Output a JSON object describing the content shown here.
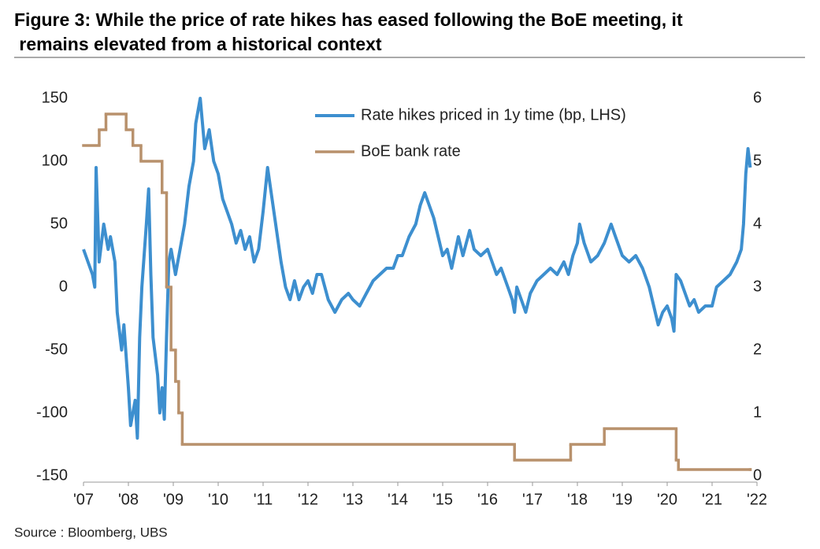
{
  "chart_data": {
    "type": "line",
    "title": "Figure 3: While the price of rate hikes has eased following the BoE meeting, it remains elevated from a historical context",
    "source": "Source : Bloomberg, UBS",
    "xlim": [
      2007,
      2022
    ],
    "xticks": [
      {
        "value": 2007,
        "label": "'07"
      },
      {
        "value": 2008,
        "label": "'08"
      },
      {
        "value": 2009,
        "label": "'09"
      },
      {
        "value": 2010,
        "label": "'10"
      },
      {
        "value": 2011,
        "label": "'11"
      },
      {
        "value": 2012,
        "label": "'12"
      },
      {
        "value": 2013,
        "label": "'13"
      },
      {
        "value": 2014,
        "label": "'14"
      },
      {
        "value": 2015,
        "label": "'15"
      },
      {
        "value": 2016,
        "label": "'16"
      },
      {
        "value": 2017,
        "label": "'17"
      },
      {
        "value": 2018,
        "label": "'18"
      },
      {
        "value": 2019,
        "label": "'19"
      },
      {
        "value": 2020,
        "label": "'20"
      },
      {
        "value": 2021,
        "label": "'21"
      },
      {
        "value": 2022,
        "label": "'22"
      }
    ],
    "ylim": [
      -150,
      150
    ],
    "yticks": [
      -150,
      -100,
      -50,
      0,
      50,
      100,
      150
    ],
    "y2lim": [
      0,
      6
    ],
    "y2ticks": [
      0,
      1,
      2,
      3,
      4,
      5,
      6
    ],
    "series": [
      {
        "name": "Rate hikes priced in 1y time (bp, LHS)",
        "color": "#3d8fcf",
        "axis": "y",
        "x": [
          2007.0,
          2007.1,
          2007.2,
          2007.25,
          2007.28,
          2007.35,
          2007.45,
          2007.55,
          2007.6,
          2007.7,
          2007.75,
          2007.85,
          2007.9,
          2008.0,
          2008.05,
          2008.15,
          2008.2,
          2008.25,
          2008.3,
          2008.4,
          2008.45,
          2008.5,
          2008.55,
          2008.65,
          2008.7,
          2008.75,
          2008.8,
          2008.85,
          2008.9,
          2008.95,
          2009.05,
          2009.15,
          2009.25,
          2009.35,
          2009.45,
          2009.5,
          2009.6,
          2009.7,
          2009.8,
          2009.9,
          2010.0,
          2010.1,
          2010.2,
          2010.3,
          2010.4,
          2010.5,
          2010.6,
          2010.7,
          2010.8,
          2010.9,
          2011.0,
          2011.1,
          2011.2,
          2011.3,
          2011.4,
          2011.5,
          2011.6,
          2011.7,
          2011.8,
          2011.9,
          2012.0,
          2012.1,
          2012.2,
          2012.3,
          2012.45,
          2012.6,
          2012.75,
          2012.9,
          2013.0,
          2013.15,
          2013.3,
          2013.45,
          2013.6,
          2013.75,
          2013.9,
          2014.0,
          2014.1,
          2014.25,
          2014.4,
          2014.5,
          2014.6,
          2014.7,
          2014.8,
          2014.9,
          2015.0,
          2015.1,
          2015.2,
          2015.35,
          2015.45,
          2015.6,
          2015.7,
          2015.85,
          2016.0,
          2016.1,
          2016.2,
          2016.3,
          2016.45,
          2016.55,
          2016.6,
          2016.65,
          2016.75,
          2016.85,
          2016.95,
          2017.1,
          2017.25,
          2017.4,
          2017.55,
          2017.7,
          2017.8,
          2017.9,
          2018.0,
          2018.05,
          2018.15,
          2018.3,
          2018.45,
          2018.6,
          2018.75,
          2018.85,
          2019.0,
          2019.15,
          2019.3,
          2019.45,
          2019.6,
          2019.7,
          2019.8,
          2019.9,
          2020.0,
          2020.1,
          2020.15,
          2020.2,
          2020.3,
          2020.4,
          2020.5,
          2020.6,
          2020.7,
          2020.85,
          2021.0,
          2021.1,
          2021.25,
          2021.4,
          2021.55,
          2021.65,
          2021.7,
          2021.75,
          2021.8,
          2021.85
        ],
        "values": [
          30,
          20,
          10,
          0,
          95,
          20,
          50,
          30,
          40,
          20,
          -20,
          -50,
          -30,
          -80,
          -110,
          -90,
          -120,
          -40,
          0,
          50,
          78,
          10,
          -40,
          -70,
          -100,
          -80,
          -105,
          -40,
          20,
          30,
          10,
          30,
          50,
          80,
          100,
          130,
          150,
          110,
          125,
          100,
          90,
          70,
          60,
          50,
          35,
          45,
          30,
          40,
          20,
          30,
          60,
          95,
          70,
          45,
          20,
          0,
          -10,
          5,
          -10,
          0,
          5,
          -5,
          10,
          10,
          -10,
          -20,
          -10,
          -5,
          -10,
          -15,
          -5,
          5,
          10,
          15,
          15,
          25,
          25,
          40,
          50,
          65,
          75,
          65,
          55,
          40,
          25,
          30,
          15,
          40,
          25,
          45,
          30,
          25,
          30,
          20,
          10,
          15,
          0,
          -10,
          -20,
          0,
          -10,
          -20,
          -5,
          5,
          10,
          15,
          10,
          20,
          10,
          25,
          35,
          50,
          35,
          20,
          25,
          35,
          50,
          40,
          25,
          20,
          25,
          15,
          0,
          -15,
          -30,
          -20,
          -15,
          -25,
          -35,
          10,
          5,
          -5,
          -15,
          -10,
          -20,
          -15,
          -15,
          0,
          5,
          10,
          20,
          30,
          50,
          90,
          110,
          95
        ]
      },
      {
        "name": "BoE bank rate",
        "color": "#b8916c",
        "axis": "y2",
        "step": true,
        "x": [
          2007.0,
          2007.35,
          2007.5,
          2007.95,
          2008.1,
          2008.28,
          2008.75,
          2008.85,
          2008.95,
          2009.05,
          2009.12,
          2009.2,
          2016.6,
          2017.85,
          2018.6,
          2020.2,
          2020.25,
          2021.85
        ],
        "values": [
          5.25,
          5.5,
          5.75,
          5.5,
          5.25,
          5.0,
          4.5,
          3.0,
          2.0,
          1.5,
          1.0,
          0.5,
          0.25,
          0.5,
          0.75,
          0.25,
          0.1,
          0.1
        ]
      }
    ]
  }
}
